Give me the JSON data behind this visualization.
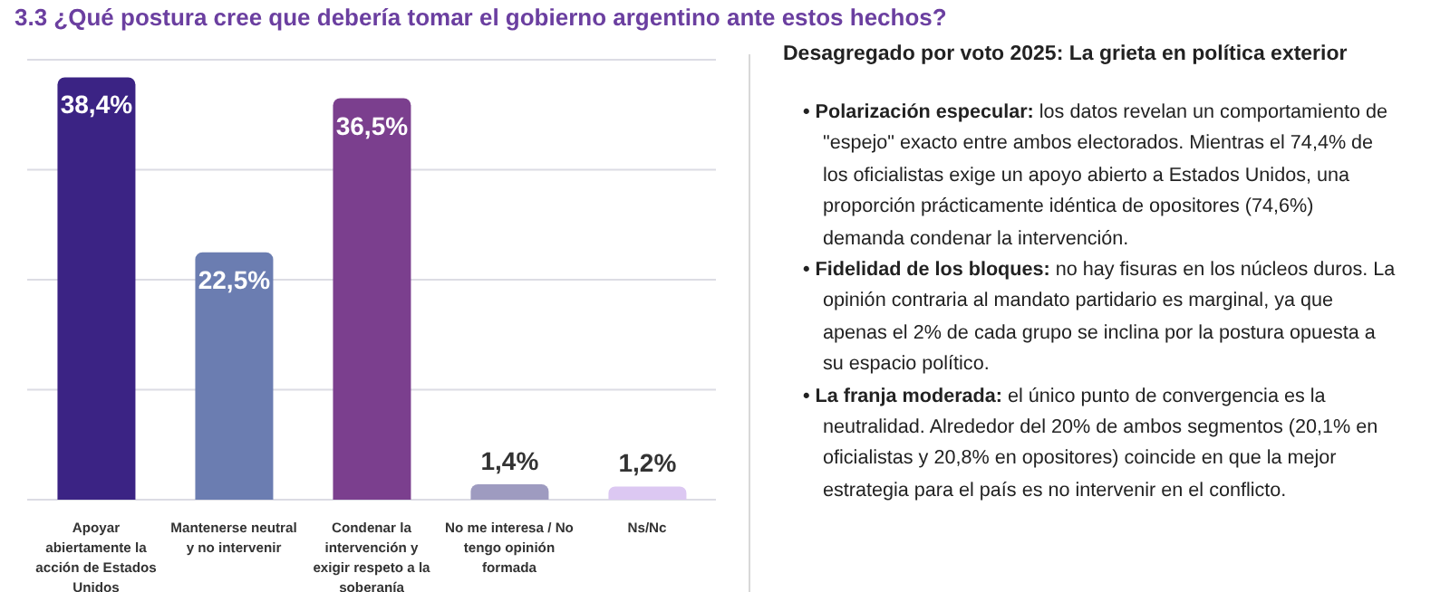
{
  "chart_data": [
    {
      "type": "bar",
      "title": "3.3 ¿Qué postura cree que debería tomar el gobierno argentino ante estos hechos?",
      "categories": [
        "Apoyar abiertamente la acción de Estados Unidos",
        "Mantenerse neutral y no intervenir",
        "Condenar la intervención y exigir respeto a la soberanía",
        "No me interesa / No tengo opinión formada",
        "Ns/Nc"
      ],
      "values": [
        38.4,
        22.5,
        36.5,
        1.4,
        1.2
      ],
      "colors": [
        "#3b2384",
        "#6b7db1",
        "#7b3f8e",
        "#9e9bc0",
        "#dcc8f2"
      ],
      "value_labels": [
        "38,4%",
        "22,5%",
        "36,5%",
        "1,4%",
        "1,2%"
      ],
      "ylim": [
        0,
        40
      ],
      "yticks": [
        {
          "value": 0,
          "label": null
        },
        {
          "value": 10,
          "label": null
        },
        {
          "value": 20,
          "label": null
        },
        {
          "value": 30,
          "label": null
        },
        {
          "value": 40,
          "label": null
        }
      ],
      "tick_labels": "x",
      "grid": "y",
      "legend": false
    },
    {
      "type": "other",
      "title": "Desagregado por voto 2025: La grieta en política exterior",
      "annotations": [
        "• Polarización especular: los datos revelan un comportamiento de \"espejo\" exacto entre ambos electorados. Mientras el 74,4% de los oficialistas exige un apoyo abierto a Estados Unidos, una proporción prácticamente idéntica de opositores (74,6%) demanda condenar la intervención.",
        "• Fidelidad de los bloques: no hay fisuras en los núcleos duros. La opinión contraria al mandato partidario es marginal, ya que apenas el 2% de cada grupo se inclina por la postura opuesta a su espacio político.",
        "• La franja moderada: el único punto de convergencia es la neutralidad. Alrededor del 20% de ambos segmentos (20,1% en oficialistas y 20,8% en opositores) coincide en que la mejor estrategia para el país es no intervenir en el conflicto."
      ]
    }
  ]
}
